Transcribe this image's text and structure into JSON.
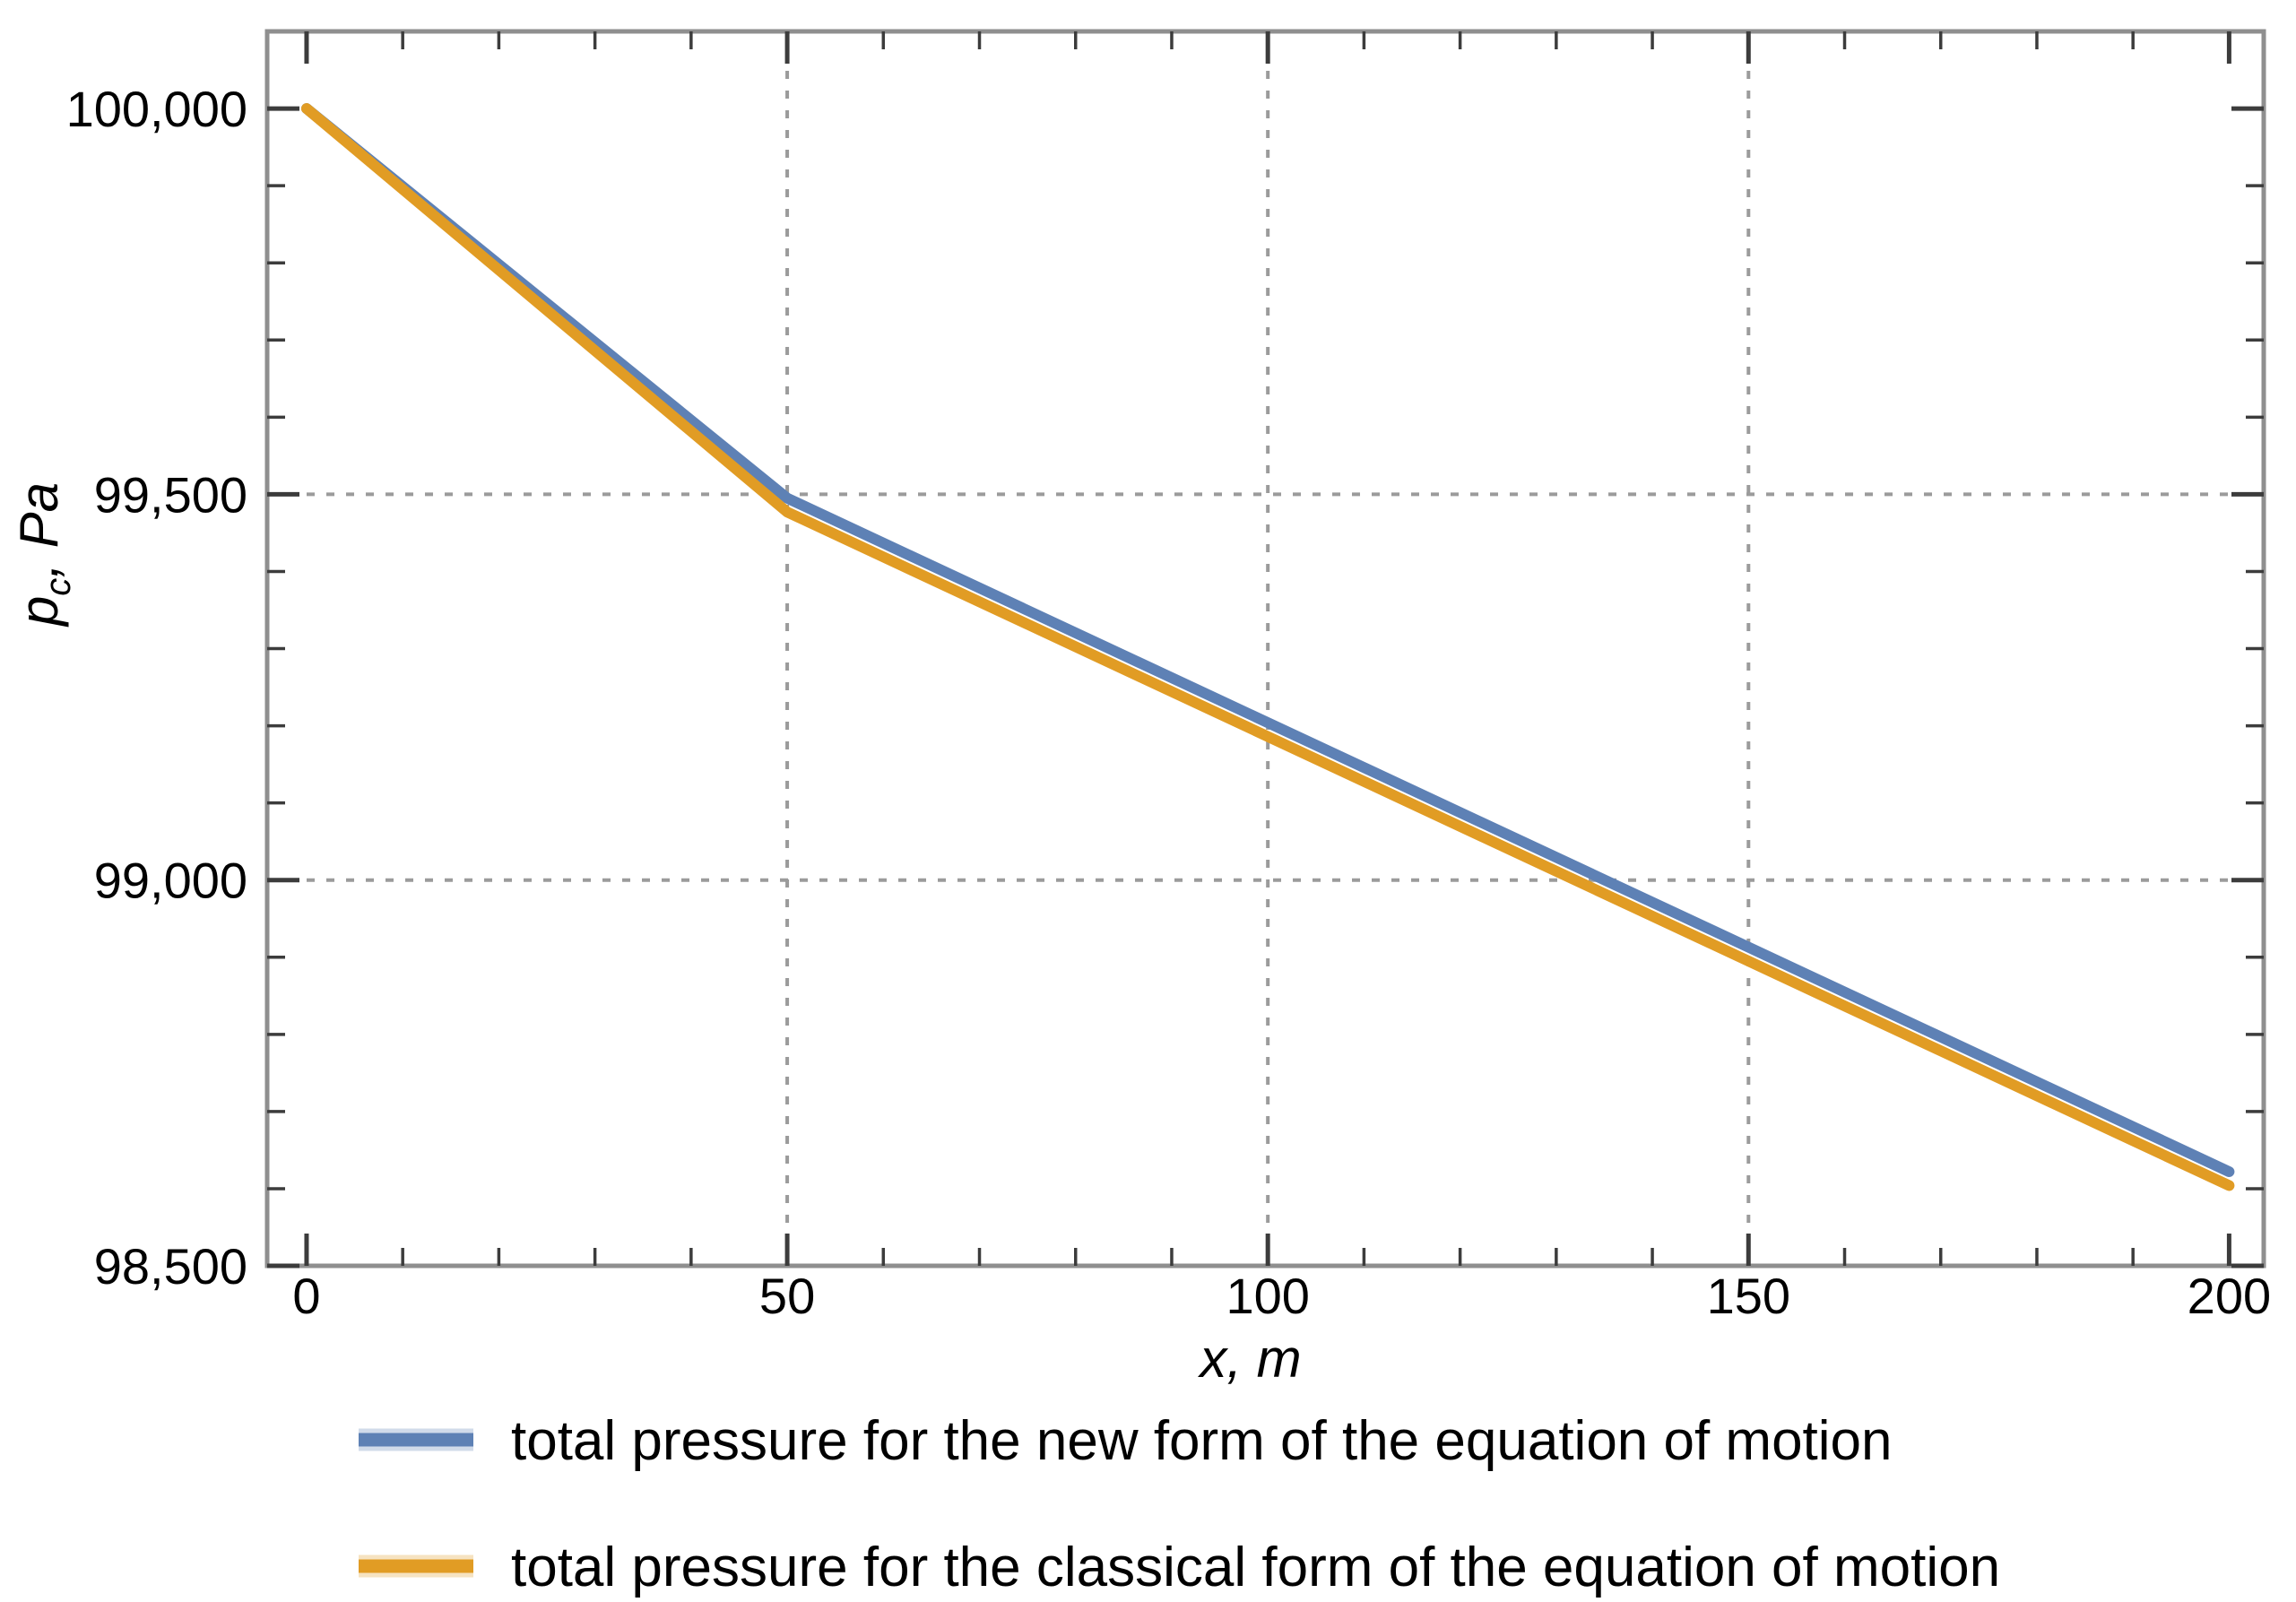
{
  "chart_data": {
    "type": "line",
    "title": "",
    "xlabel": "x, m",
    "ylabel": "p_c, Pa",
    "ylabel_parts": [
      "p",
      "c",
      ", Pa"
    ],
    "xlim": [
      -4.1,
      203.6
    ],
    "ylim": [
      98500,
      100100
    ],
    "x_major_ticks": [
      0,
      50,
      100,
      150,
      200
    ],
    "x_tick_labels": [
      "0",
      "50",
      "100",
      "150",
      "200"
    ],
    "x_minor_step": 10,
    "y_major_ticks": [
      98500,
      99000,
      99500,
      100000
    ],
    "y_tick_labels": [
      "98,500",
      "99,000",
      "99,500",
      "100,000"
    ],
    "y_minor_step": 100,
    "x_gridlines": [
      50,
      100,
      150
    ],
    "y_gridlines": [
      99000,
      99500
    ],
    "grid_color": "#9b9b9b",
    "grid_dash": "9 13",
    "frame_color": "#8f8f8f",
    "tick_color": "#3c3c3c",
    "text_color": "#000000",
    "line_width": 12,
    "series": [
      {
        "id": "new-form",
        "name": "total pressure for the new form of the equation of motion",
        "color": "#5e81b5",
        "points": [
          [
            0,
            100000
          ],
          [
            50,
            99495
          ],
          [
            200,
            98622
          ]
        ]
      },
      {
        "id": "classical-form",
        "name": "total pressure for the classical form of the equation of motion",
        "color": "#e19c24",
        "points": [
          [
            0,
            100000
          ],
          [
            50,
            99477
          ],
          [
            200,
            98604
          ]
        ]
      }
    ],
    "legend_position": "below"
  },
  "legend": {
    "items": [
      {
        "label": "total pressure for the new form of the equation of motion",
        "color": "#5e81b5"
      },
      {
        "label": "total pressure for the classical form of the equation of motion",
        "color": "#e19c24"
      }
    ]
  }
}
